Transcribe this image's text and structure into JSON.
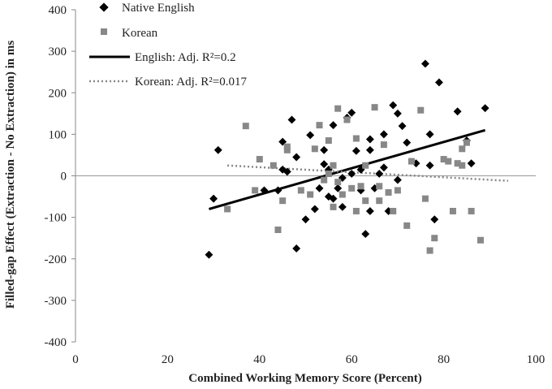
{
  "chart_data": {
    "type": "scatter",
    "xlabel": "Combined Working Memory Score (Percent)",
    "ylabel": "Filled-gap Effect (Extraction - No Extraction) in ms",
    "xlim": [
      0,
      100
    ],
    "ylim": [
      -400,
      400
    ],
    "x_ticks": [
      0,
      20,
      40,
      60,
      80,
      100
    ],
    "y_ticks": [
      400,
      300,
      200,
      100,
      0,
      -100,
      -200,
      -300,
      -400
    ],
    "grid": false,
    "legend_position": "top-left",
    "series": [
      {
        "name": "Native English",
        "marker": "diamond",
        "color": "#000000",
        "points": [
          [
            29,
            -190
          ],
          [
            30,
            -55
          ],
          [
            31,
            62
          ],
          [
            41,
            -35
          ],
          [
            44,
            -35
          ],
          [
            45,
            82
          ],
          [
            45,
            15
          ],
          [
            46,
            10
          ],
          [
            47,
            135
          ],
          [
            48,
            -175
          ],
          [
            48,
            45
          ],
          [
            50,
            -105
          ],
          [
            51,
            98
          ],
          [
            52,
            -80
          ],
          [
            53,
            -30
          ],
          [
            54,
            28
          ],
          [
            54,
            62
          ],
          [
            55,
            -50
          ],
          [
            55,
            15
          ],
          [
            56,
            -55
          ],
          [
            56,
            122
          ],
          [
            57,
            -30
          ],
          [
            58,
            -75
          ],
          [
            58,
            -5
          ],
          [
            59,
            140
          ],
          [
            60,
            152
          ],
          [
            60,
            5
          ],
          [
            61,
            60
          ],
          [
            62,
            15
          ],
          [
            62,
            -35
          ],
          [
            63,
            -140
          ],
          [
            64,
            -85
          ],
          [
            64,
            62
          ],
          [
            64,
            88
          ],
          [
            65,
            -30
          ],
          [
            66,
            5
          ],
          [
            67,
            100
          ],
          [
            67,
            20
          ],
          [
            68,
            -85
          ],
          [
            69,
            170
          ],
          [
            70,
            150
          ],
          [
            70,
            -10
          ],
          [
            71,
            120
          ],
          [
            72,
            80
          ],
          [
            74,
            30
          ],
          [
            76,
            270
          ],
          [
            77,
            25
          ],
          [
            77,
            100
          ],
          [
            78,
            -105
          ],
          [
            79,
            225
          ],
          [
            83,
            155
          ],
          [
            85,
            85
          ],
          [
            86,
            30
          ],
          [
            89,
            163
          ]
        ]
      },
      {
        "name": "Korean",
        "marker": "square",
        "color": "#888888",
        "points": [
          [
            33,
            -80
          ],
          [
            37,
            120
          ],
          [
            39,
            -35
          ],
          [
            40,
            40
          ],
          [
            43,
            25
          ],
          [
            44,
            -130
          ],
          [
            45,
            -60
          ],
          [
            46,
            70
          ],
          [
            46,
            62
          ],
          [
            49,
            -35
          ],
          [
            51,
            -45
          ],
          [
            52,
            65
          ],
          [
            53,
            122
          ],
          [
            54,
            -10
          ],
          [
            55,
            5
          ],
          [
            55,
            85
          ],
          [
            56,
            -75
          ],
          [
            56,
            25
          ],
          [
            57,
            -15
          ],
          [
            57,
            162
          ],
          [
            58,
            -45
          ],
          [
            59,
            135
          ],
          [
            60,
            -30
          ],
          [
            61,
            -85
          ],
          [
            61,
            90
          ],
          [
            62,
            -25
          ],
          [
            63,
            -60
          ],
          [
            63,
            25
          ],
          [
            65,
            165
          ],
          [
            66,
            -25
          ],
          [
            66,
            -60
          ],
          [
            67,
            75
          ],
          [
            68,
            -40
          ],
          [
            69,
            -85
          ],
          [
            70,
            -35
          ],
          [
            72,
            -120
          ],
          [
            73,
            35
          ],
          [
            75,
            158
          ],
          [
            76,
            -55
          ],
          [
            77,
            -180
          ],
          [
            78,
            -150
          ],
          [
            80,
            40
          ],
          [
            81,
            35
          ],
          [
            82,
            -85
          ],
          [
            83,
            30
          ],
          [
            84,
            65
          ],
          [
            84,
            25
          ],
          [
            85,
            80
          ],
          [
            86,
            -85
          ],
          [
            88,
            -155
          ]
        ]
      }
    ],
    "trendlines": [
      {
        "name": "English: Adj. R²=0.2",
        "style": "solid",
        "color": "#000000",
        "x": [
          29,
          89
        ],
        "y": [
          -80,
          110
        ]
      },
      {
        "name": "Korean: Adj. R²=0.017",
        "style": "dotted",
        "color": "#888888",
        "x": [
          33,
          94
        ],
        "y": [
          25,
          -12
        ]
      }
    ]
  }
}
